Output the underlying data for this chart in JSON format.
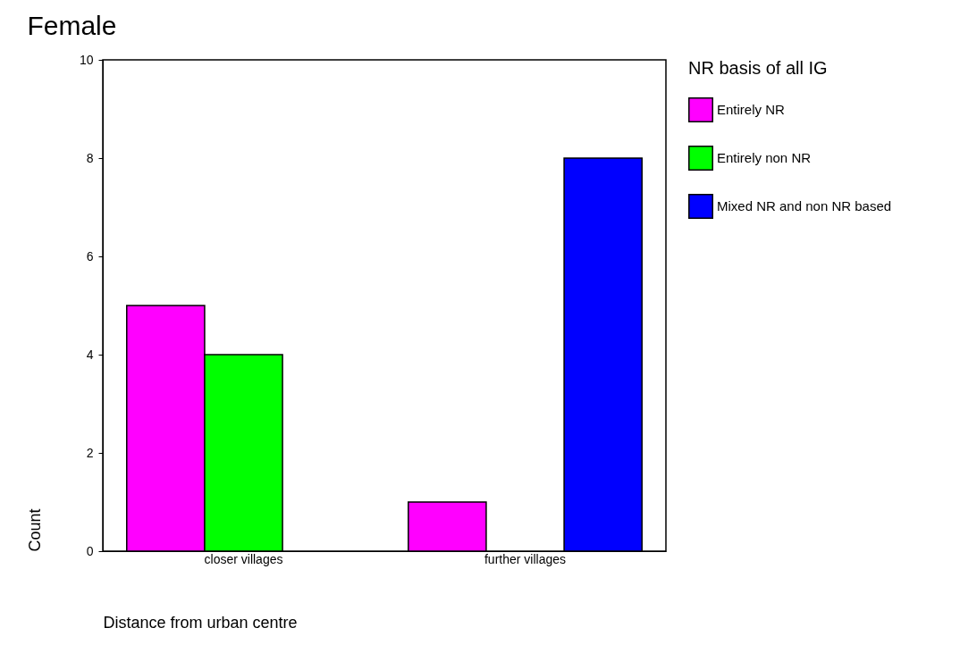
{
  "chart_data": {
    "type": "bar",
    "title": "Female",
    "xlabel": "Distance from urban centre",
    "ylabel": "Count",
    "legend_title": "NR basis of all IG",
    "categories": [
      "closer villages",
      "further villages"
    ],
    "series": [
      {
        "name": "Entirely NR",
        "color": "#ff00ff",
        "values": [
          5,
          1
        ]
      },
      {
        "name": "Entirely non NR",
        "color": "#00ff00",
        "values": [
          4,
          null
        ]
      },
      {
        "name": "Mixed NR and non NR based",
        "color": "#0000ff",
        "values": [
          null,
          8
        ]
      }
    ],
    "ylim": [
      0,
      10
    ],
    "yticks": [
      0,
      2,
      4,
      6,
      8,
      10
    ],
    "grid": false,
    "legend": "right"
  }
}
